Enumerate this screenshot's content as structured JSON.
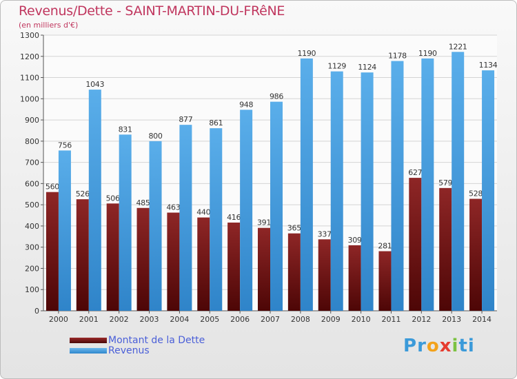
{
  "header": {
    "title": "Revenus/Dette - SAINT-MARTIN-DU-FRêNE",
    "subtitle": "(en milliers d'€)"
  },
  "legend": {
    "items": [
      {
        "label": "Montant de la Dette",
        "color": "#7a1818"
      },
      {
        "label": "Revenus",
        "color": "#4a9fe0"
      }
    ]
  },
  "brand": {
    "letters": [
      {
        "ch": "P",
        "color": "#3b9ad9"
      },
      {
        "ch": "r",
        "color": "#3b9ad9"
      },
      {
        "ch": "o",
        "color": "#f3a21b"
      },
      {
        "ch": "x",
        "color": "#e63c2f"
      },
      {
        "ch": "i",
        "color": "#7cc242"
      },
      {
        "ch": "t",
        "color": "#3b9ad9"
      },
      {
        "ch": "i",
        "color": "#3b9ad9"
      }
    ]
  },
  "chart_data": {
    "type": "bar",
    "categories": [
      "2000",
      "2001",
      "2002",
      "2003",
      "2004",
      "2005",
      "2006",
      "2007",
      "2008",
      "2009",
      "2010",
      "2011",
      "2012",
      "2013",
      "2014"
    ],
    "series": [
      {
        "name": "Montant de la Dette",
        "color": "#7a1818",
        "values": [
          560,
          526,
          506,
          485,
          463,
          440,
          416,
          391,
          365,
          337,
          309,
          281,
          627,
          579,
          528
        ]
      },
      {
        "name": "Revenus",
        "color": "#4a9fe0",
        "values": [
          756,
          1043,
          831,
          800,
          877,
          861,
          948,
          986,
          1190,
          1129,
          1124,
          1178,
          1190,
          1221,
          1134
        ]
      }
    ],
    "ylim": [
      0,
      1300
    ],
    "yticks": [
      0,
      100,
      200,
      300,
      400,
      500,
      600,
      700,
      800,
      900,
      1000,
      1100,
      1200,
      1300
    ],
    "grid": true,
    "legend_position": "bottom-left"
  }
}
